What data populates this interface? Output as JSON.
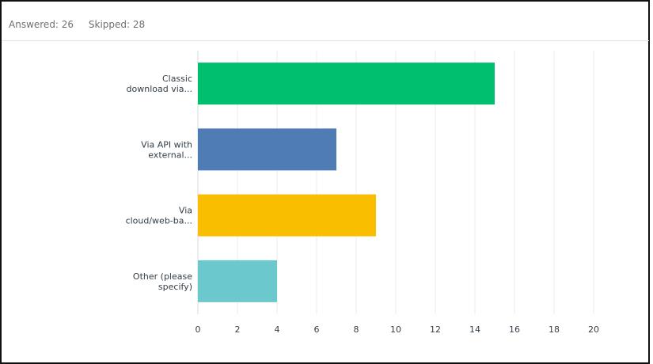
{
  "summary": {
    "answered": "Answered: 26",
    "skipped": "Skipped: 28"
  },
  "chart_data": {
    "type": "bar",
    "orientation": "horizontal",
    "categories": [
      "Classic download via...",
      "Via API with external...",
      "Via cloud/web-ba...",
      "Other (please specify)"
    ],
    "category_label_lines": [
      [
        "Classic",
        "download via..."
      ],
      [
        "Via API with",
        "external..."
      ],
      [
        "Via",
        "cloud/web-ba..."
      ],
      [
        "Other (please",
        "specify)"
      ]
    ],
    "values": [
      15,
      7,
      9,
      4
    ],
    "colors": [
      "#00bf6f",
      "#507cb6",
      "#f9be00",
      "#6bc8cd"
    ],
    "xlim": [
      0,
      20
    ],
    "xticks": [
      "0",
      "2",
      "4",
      "6",
      "8",
      "10",
      "12",
      "14",
      "16",
      "18",
      "20"
    ],
    "grid": true,
    "title": "",
    "xlabel": "",
    "ylabel": ""
  }
}
